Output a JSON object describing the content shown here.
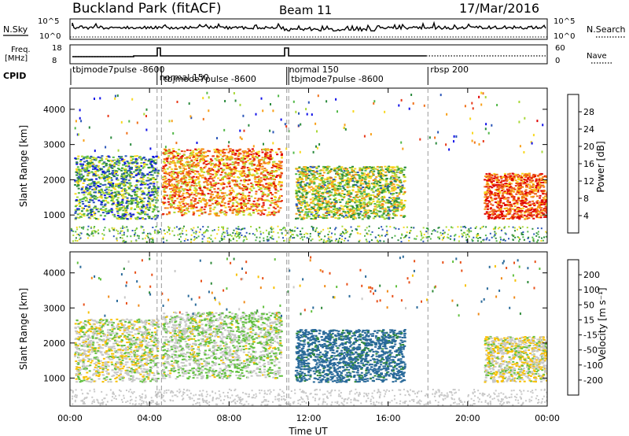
{
  "header": {
    "site": "Buckland Park (fitACF)",
    "beam": "Beam 11",
    "date": "17/Mar/2016"
  },
  "panel_labels": {
    "nsky": "N.Sky",
    "nsearch": "N.Search",
    "freq": "Freq.",
    "mhz": "[MHz]",
    "nave": "Nave",
    "cpid": "CPID"
  },
  "noise_axis": {
    "left_ticks": [
      "10^5",
      "10^0"
    ],
    "right_ticks": [
      "10^5",
      "10^0"
    ]
  },
  "freq_axis": {
    "left_ticks": [
      "18",
      "8"
    ],
    "right_ticks": [
      "60",
      "0"
    ]
  },
  "cpid_segments": [
    {
      "label": "tbjmode7pulse  -8600",
      "start_h": 0.0
    },
    {
      "label": "normal 150",
      "start_h": 4.38
    },
    {
      "label": "tbjmode7pulse  -8600",
      "start_h": 4.6
    },
    {
      "label": "normal 150",
      "start_h": 10.9
    },
    {
      "label": "tbjmode7pulse  -8600",
      "start_h": 11.0
    },
    {
      "label": "rbsp  200",
      "start_h": 18.0
    }
  ],
  "mode_boundaries_h": [
    4.38,
    4.6,
    10.9,
    11.0,
    18.0
  ],
  "colorbars": {
    "power": {
      "label": "Power [dB]",
      "ticks": [
        "4",
        "8",
        "12",
        "16",
        "20",
        "24",
        "28"
      ],
      "colors": [
        "#1010e8",
        "#2a55b8",
        "#2b8a3e",
        "#52b848",
        "#a8d838",
        "#f8d820",
        "#f8a018",
        "#f07018",
        "#e83818",
        "#e00000"
      ]
    },
    "velocity": {
      "label": "Velocity [m s⁻¹]",
      "ticks": [
        "200",
        "100",
        "50",
        "15",
        "-15",
        "-50",
        "-100",
        "-200"
      ],
      "colors": [
        "#1a2ab8",
        "#2a6a9a",
        "#2f8a3a",
        "#62c040",
        "#c8c8c8",
        "#f8c000",
        "#f08a18",
        "#e85018",
        "#e00000"
      ]
    }
  },
  "chart_data": [
    {
      "type": "heatmap",
      "name": "power",
      "ylabel": "Slant Range [km]",
      "ylim": [
        200,
        4600
      ],
      "y_ticks": [
        1000,
        2000,
        3000,
        4000
      ],
      "xlim_hours": [
        0,
        24
      ],
      "colorbar": "Power [dB]",
      "echo_regions": [
        {
          "t_start": 0.2,
          "t_end": 4.4,
          "r_min": 900,
          "r_max": 2700,
          "power_db": 10
        },
        {
          "t_start": 4.6,
          "t_end": 10.6,
          "r_min": 1000,
          "r_max": 2900,
          "power_db": 22
        },
        {
          "t_start": 11.3,
          "t_end": 16.8,
          "r_min": 900,
          "r_max": 2400,
          "power_db": 14
        },
        {
          "t_start": 20.8,
          "t_end": 24.0,
          "r_min": 900,
          "r_max": 2200,
          "power_db": 26
        }
      ]
    },
    {
      "type": "heatmap",
      "name": "velocity",
      "ylabel": "Slant Range [km]",
      "xlabel": "Time UT",
      "ylim": [
        200,
        4600
      ],
      "y_ticks": [
        1000,
        2000,
        3000,
        4000
      ],
      "x_ticks": [
        "00:00",
        "04:00",
        "08:00",
        "12:00",
        "16:00",
        "20:00",
        "00:00"
      ],
      "xlim_hours": [
        0,
        24
      ],
      "colorbar": "Velocity [m s⁻¹]",
      "echo_regions": [
        {
          "t_start": 0.2,
          "t_end": 4.4,
          "r_min": 900,
          "r_max": 2700,
          "velocity": 0
        },
        {
          "t_start": 4.6,
          "t_end": 10.6,
          "r_min": 1000,
          "r_max": 2900,
          "velocity": 10
        },
        {
          "t_start": 11.3,
          "t_end": 16.8,
          "r_min": 900,
          "r_max": 2400,
          "velocity": 120
        },
        {
          "t_start": 20.8,
          "t_end": 24.0,
          "r_min": 900,
          "r_max": 2200,
          "velocity": -5
        }
      ]
    }
  ]
}
